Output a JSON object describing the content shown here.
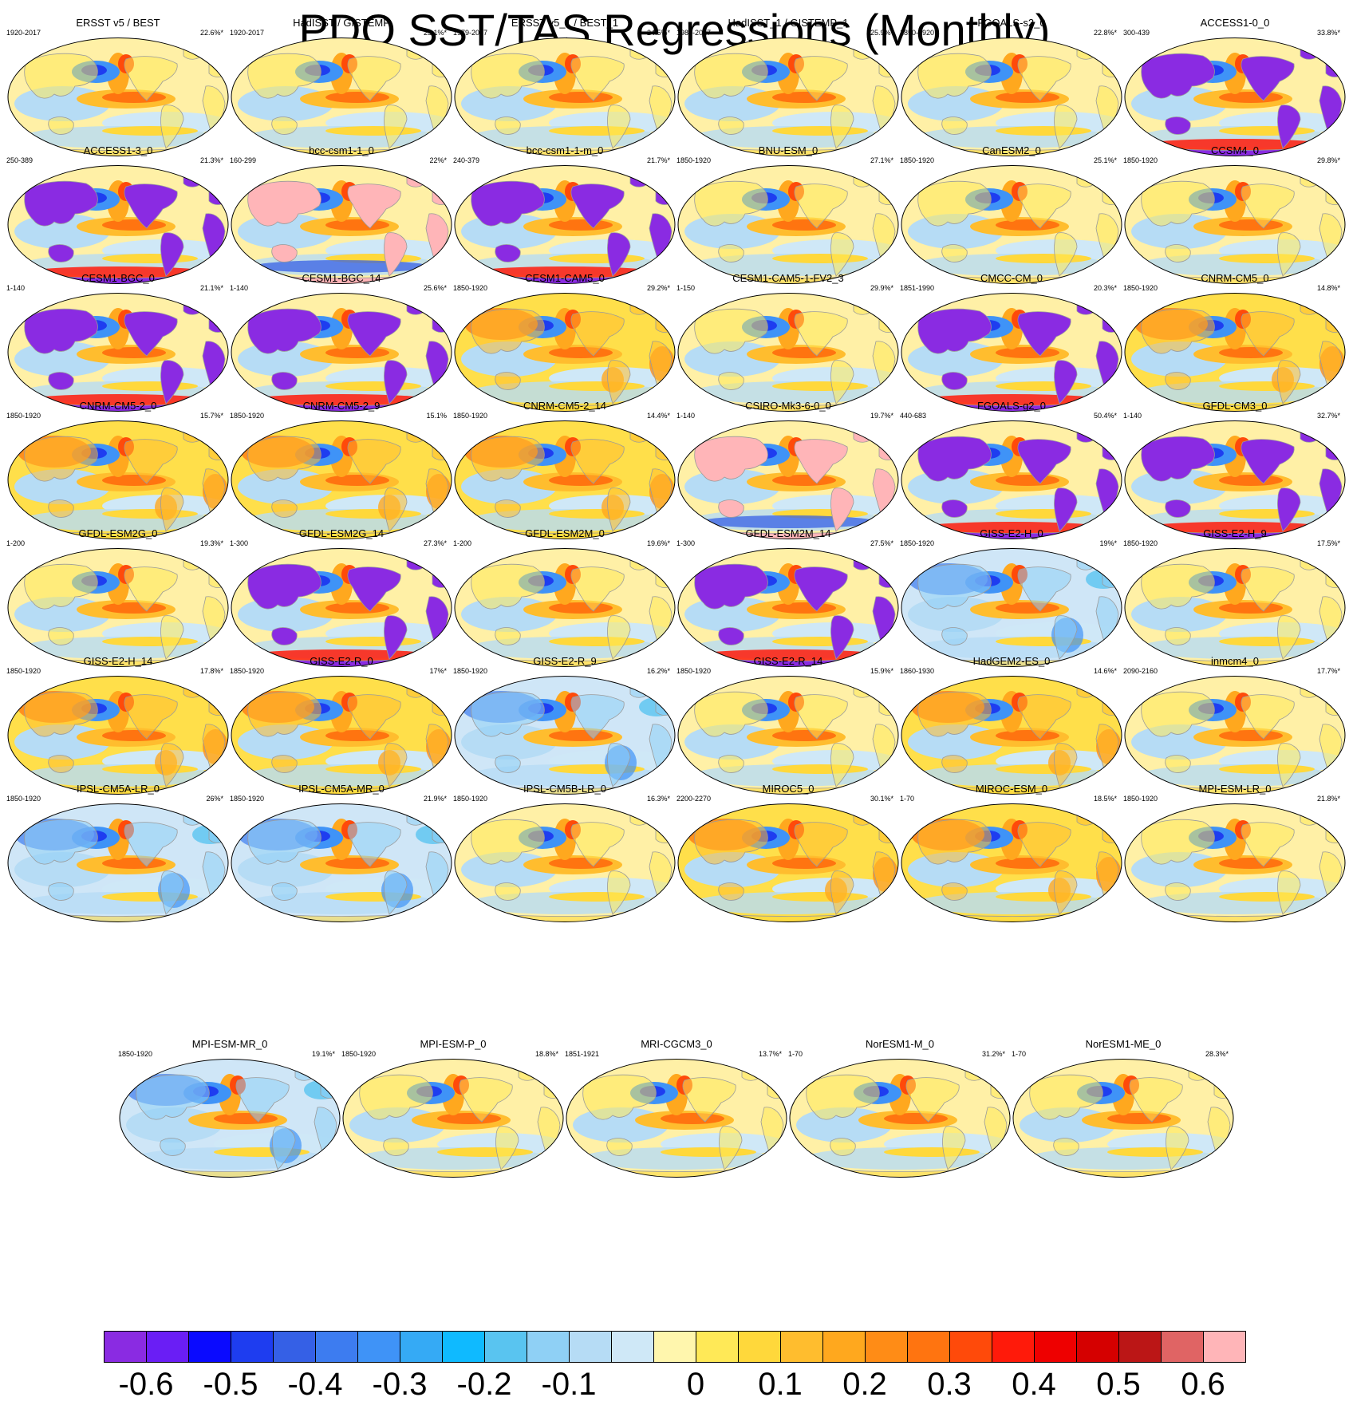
{
  "title": "PDO SST/TAS Regressions (Monthly)",
  "panels": [
    {
      "name": "ERSST v5 / BEST",
      "period": "1920-2017",
      "pct": "22.6%*",
      "mode": "normal"
    },
    {
      "name": "HadISST / GISTEMP",
      "period": "1920-2017",
      "pct": "25.1%*",
      "mode": "normal"
    },
    {
      "name": "ERSST v5_1 / BEST_1",
      "period": "1979-2017",
      "pct": "24.5%*",
      "mode": "normal"
    },
    {
      "name": "HadISST_1 / GISTEMP_1",
      "period": "1980-2017",
      "pct": "25.9%*",
      "mode": "normal"
    },
    {
      "name": "FGOALS-s2_0",
      "period": "1850-1920",
      "pct": "22.8%*",
      "mode": "normal"
    },
    {
      "name": "ACCESS1-0_0",
      "period": "300-439",
      "pct": "33.8%*",
      "mode": "purple"
    },
    {
      "name": "ACCESS1-3_0",
      "period": "250-389",
      "pct": "21.3%*",
      "mode": "purple"
    },
    {
      "name": "bcc-csm1-1_0",
      "period": "160-299",
      "pct": "22%*",
      "mode": "pink"
    },
    {
      "name": "bcc-csm1-1-m_0",
      "period": "240-379",
      "pct": "21.7%*",
      "mode": "purple"
    },
    {
      "name": "BNU-ESM_0",
      "period": "1850-1920",
      "pct": "27.1%*",
      "mode": "normal"
    },
    {
      "name": "CanESM2_0",
      "period": "1850-1920",
      "pct": "25.1%*",
      "mode": "normal"
    },
    {
      "name": "CCSM4_0",
      "period": "1850-1920",
      "pct": "29.8%*",
      "mode": "normal"
    },
    {
      "name": "CESM1-BGC_0",
      "period": "1-140",
      "pct": "21.1%*",
      "mode": "purple"
    },
    {
      "name": "CESM1-BGC_14",
      "period": "1-140",
      "pct": "25.6%*",
      "mode": "purple"
    },
    {
      "name": "CESM1-CAM5_0",
      "period": "1850-1920",
      "pct": "29.2%*",
      "mode": "warm"
    },
    {
      "name": "CESM1-CAM5-1-FV2_3",
      "period": "1-150",
      "pct": "29.9%*",
      "mode": "normal"
    },
    {
      "name": "CMCC-CM_0",
      "period": "1851-1990",
      "pct": "20.3%*",
      "mode": "purple"
    },
    {
      "name": "CNRM-CM5_0",
      "period": "1850-1920",
      "pct": "14.8%*",
      "mode": "warm"
    },
    {
      "name": "CNRM-CM5-2_0",
      "period": "1850-1920",
      "pct": "15.7%*",
      "mode": "warm"
    },
    {
      "name": "CNRM-CM5-2_9",
      "period": "1850-1920",
      "pct": "15.1%",
      "mode": "warm"
    },
    {
      "name": "CNRM-CM5-2_14",
      "period": "1850-1920",
      "pct": "14.4%*",
      "mode": "warm"
    },
    {
      "name": "CSIRO-Mk3-6-0_0",
      "period": "1-140",
      "pct": "19.7%*",
      "mode": "pink"
    },
    {
      "name": "FGOALS-g2_0",
      "period": "440-683",
      "pct": "50.4%*",
      "mode": "purple"
    },
    {
      "name": "GFDL-CM3_0",
      "period": "1-140",
      "pct": "32.7%*",
      "mode": "purple"
    },
    {
      "name": "GFDL-ESM2G_0",
      "period": "1-200",
      "pct": "19.3%*",
      "mode": "normal"
    },
    {
      "name": "GFDL-ESM2G_14",
      "period": "1-300",
      "pct": "27.3%*",
      "mode": "purple"
    },
    {
      "name": "GFDL-ESM2M_0",
      "period": "1-200",
      "pct": "19.6%*",
      "mode": "normal"
    },
    {
      "name": "GFDL-ESM2M_14",
      "period": "1-300",
      "pct": "27.5%*",
      "mode": "purple"
    },
    {
      "name": "GISS-E2-H_0",
      "period": "1850-1920",
      "pct": "19%*",
      "mode": "cool"
    },
    {
      "name": "GISS-E2-H_9",
      "period": "1850-1920",
      "pct": "17.5%*",
      "mode": "normal"
    },
    {
      "name": "GISS-E2-H_14",
      "period": "1850-1920",
      "pct": "17.8%*",
      "mode": "warm"
    },
    {
      "name": "GISS-E2-R_0",
      "period": "1850-1920",
      "pct": "17%*",
      "mode": "warm"
    },
    {
      "name": "GISS-E2-R_9",
      "period": "1850-1920",
      "pct": "16.2%*",
      "mode": "cool"
    },
    {
      "name": "GISS-E2-R_14",
      "period": "1850-1920",
      "pct": "15.9%*",
      "mode": "normal"
    },
    {
      "name": "HadGEM2-ES_0",
      "period": "1860-1930",
      "pct": "14.6%*",
      "mode": "warm"
    },
    {
      "name": "inmcm4_0",
      "period": "2090-2160",
      "pct": "17.7%*",
      "mode": "normal"
    },
    {
      "name": "IPSL-CM5A-LR_0",
      "period": "1850-1920",
      "pct": "26%*",
      "mode": "cool"
    },
    {
      "name": "IPSL-CM5A-MR_0",
      "period": "1850-1920",
      "pct": "21.9%*",
      "mode": "cool"
    },
    {
      "name": "IPSL-CM5B-LR_0",
      "period": "1850-1920",
      "pct": "16.3%*",
      "mode": "normal"
    },
    {
      "name": "MIROC5_0",
      "period": "2200-2270",
      "pct": "30.1%*",
      "mode": "warm"
    },
    {
      "name": "MIROC-ESM_0",
      "period": "1-70",
      "pct": "18.5%*",
      "mode": "warm"
    },
    {
      "name": "MPI-ESM-LR_0",
      "period": "1850-1920",
      "pct": "21.8%*",
      "mode": "normal"
    },
    {
      "name": "MPI-ESM-MR_0",
      "period": "1850-1920",
      "pct": "19.1%*",
      "mode": "cool"
    },
    {
      "name": "MPI-ESM-P_0",
      "period": "1850-1920",
      "pct": "18.8%*",
      "mode": "normal"
    },
    {
      "name": "MRI-CGCM3_0",
      "period": "1851-1921",
      "pct": "13.7%*",
      "mode": "normal"
    },
    {
      "name": "NorESM1-M_0",
      "period": "1-70",
      "pct": "31.2%*",
      "mode": "normal"
    },
    {
      "name": "NorESM1-ME_0",
      "period": "1-70",
      "pct": "28.3%*",
      "mode": "normal"
    }
  ],
  "colorbar": {
    "colors": [
      "#8a2be2",
      "#6a1ef5",
      "#0a0aff",
      "#1e3df0",
      "#3560e6",
      "#3d7cf0",
      "#3f93f7",
      "#35aaf5",
      "#0fbaff",
      "#59c4f0",
      "#8fd0f5",
      "#b6dcf5",
      "#cfe8f7",
      "#fff6ad",
      "#ffe957",
      "#ffd83b",
      "#ffbd2e",
      "#ffa81e",
      "#ff8c16",
      "#ff7410",
      "#ff4a0a",
      "#ff1a0a",
      "#ee0000",
      "#d50000",
      "#bb1616",
      "#e06464",
      "#ffb5b8"
    ],
    "ticks": [
      "-0.6",
      "-0.5",
      "-0.4",
      "-0.3",
      "-0.2",
      "-0.1",
      "0",
      "0.1",
      "0.2",
      "0.3",
      "0.4",
      "0.5",
      "0.6"
    ]
  }
}
